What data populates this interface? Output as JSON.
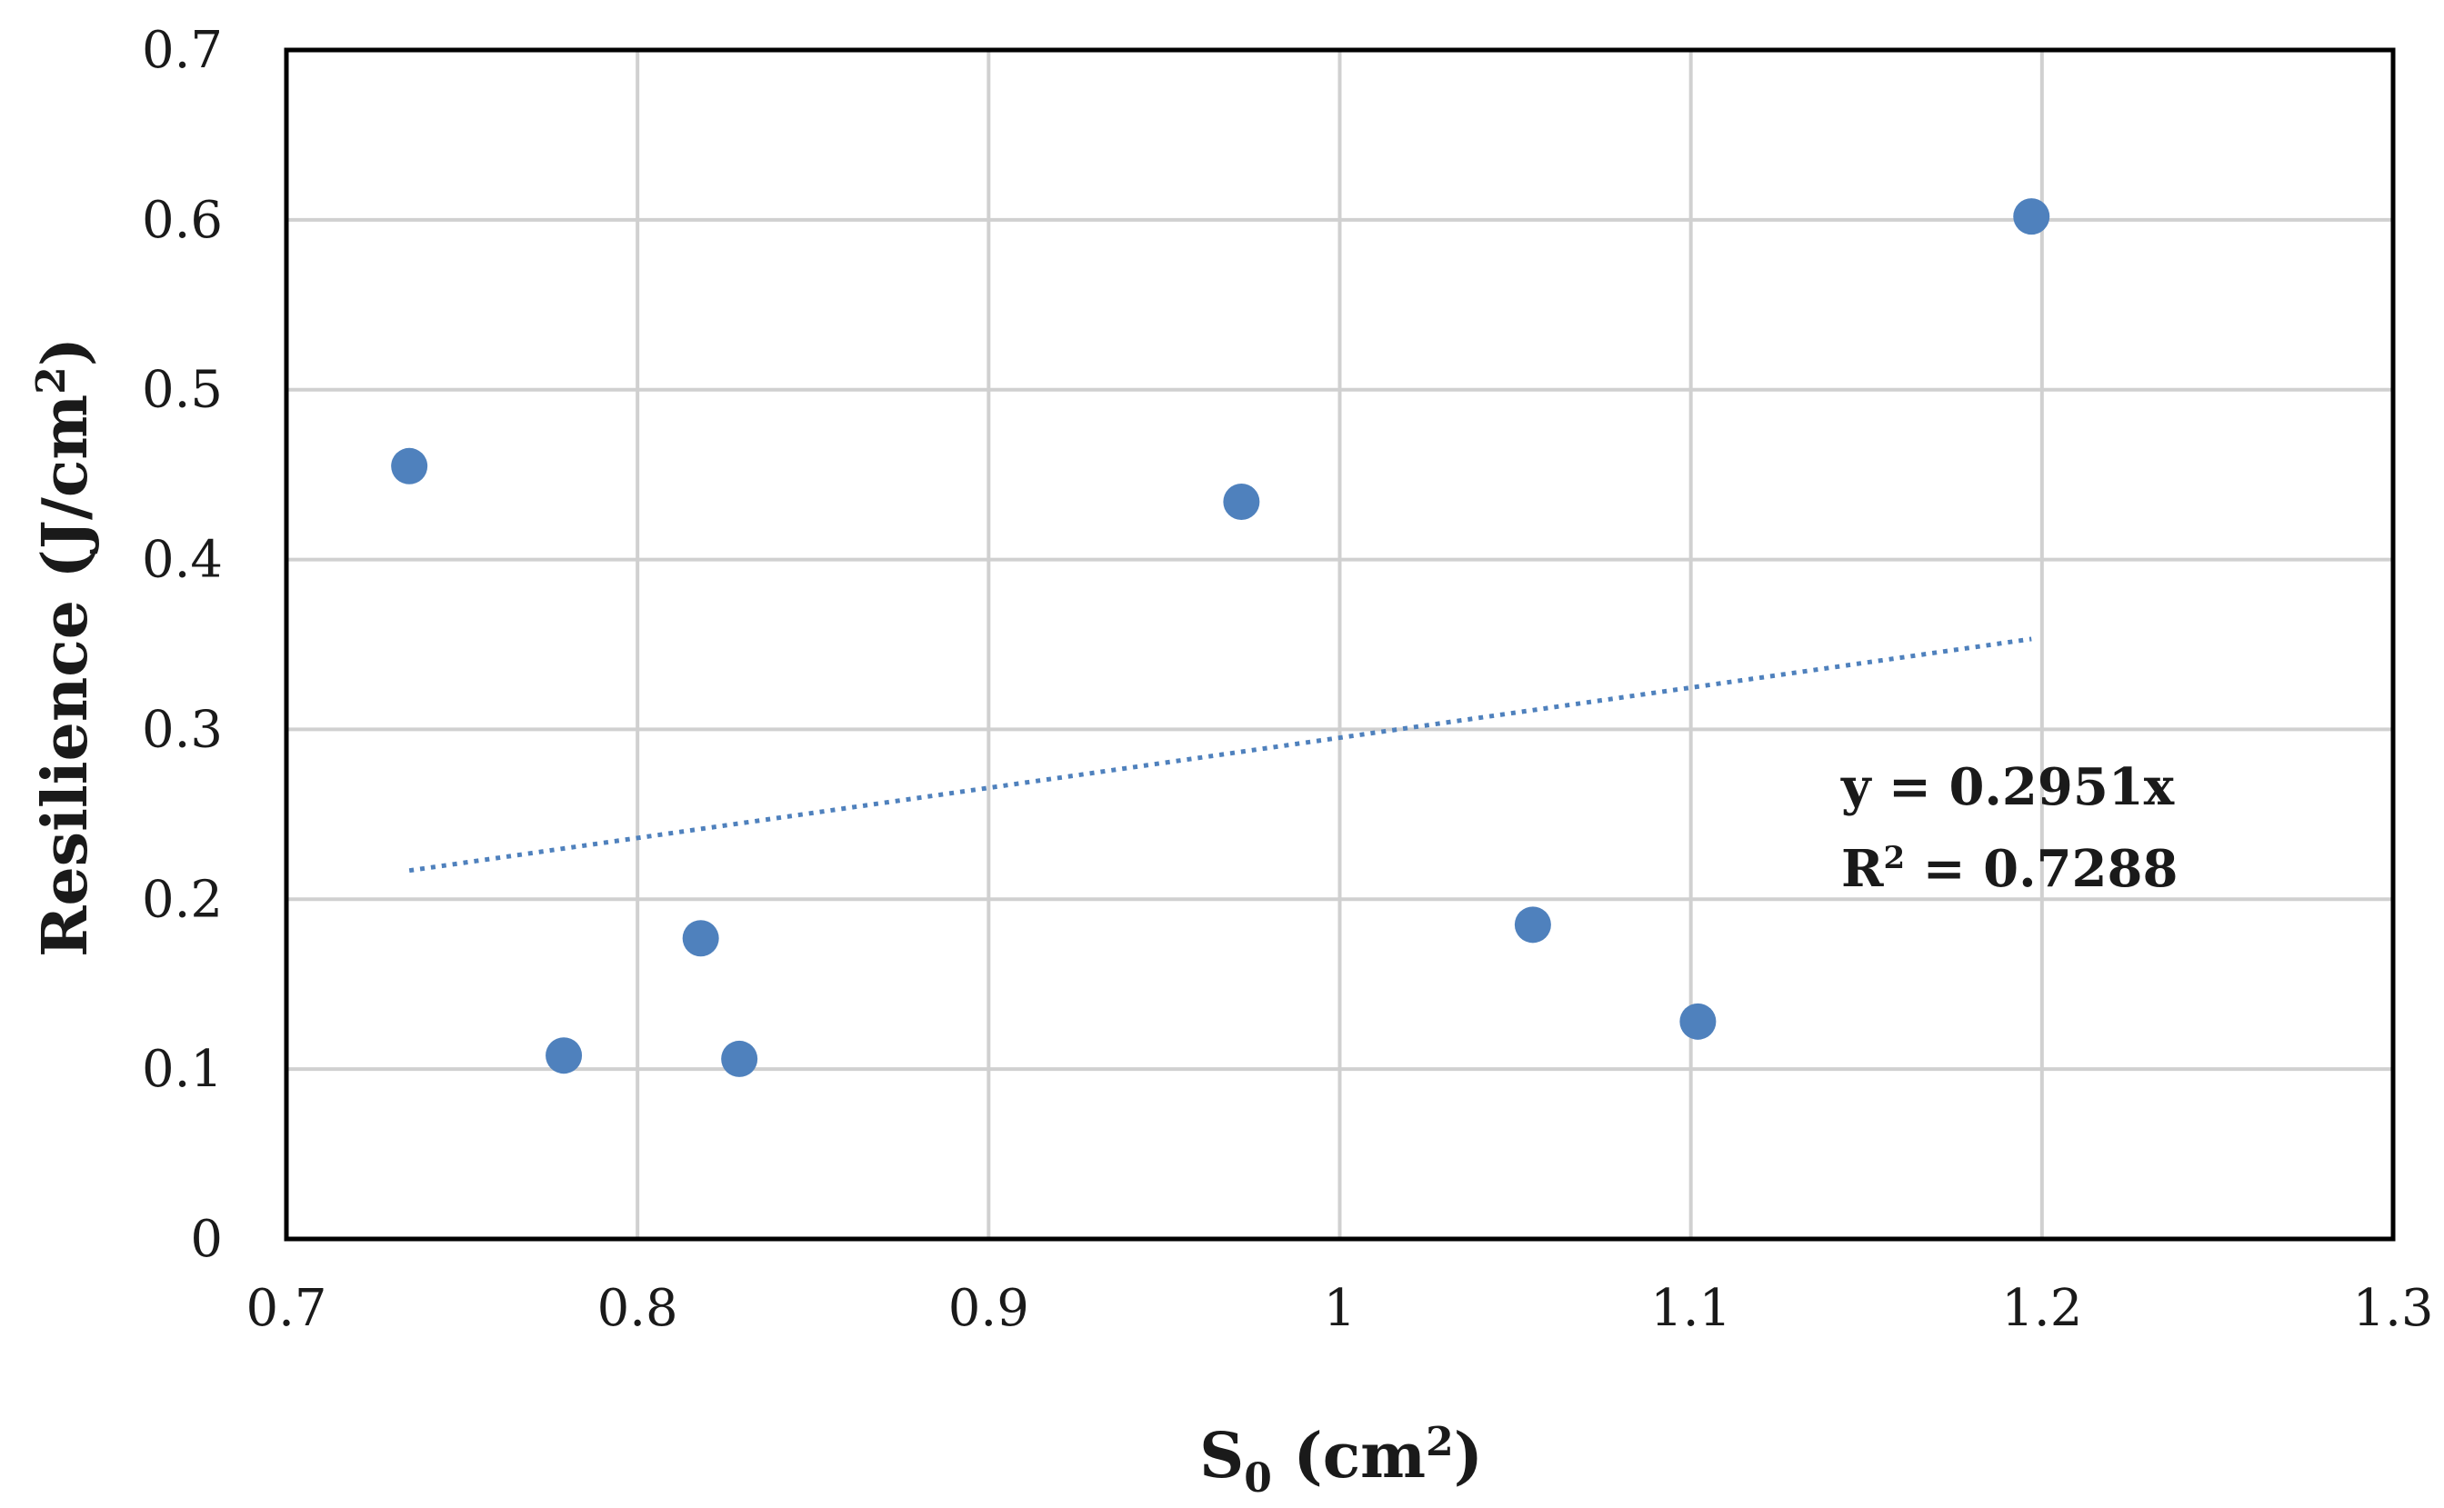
{
  "chart_data": {
    "type": "scatter",
    "title": "",
    "xlabel": {
      "main": "S",
      "sub": "0",
      "unit_open": " (cm",
      "sup": "2",
      "unit_close": ")"
    },
    "ylabel": {
      "main": "Resilience  (J/cm",
      "sup": "2",
      "close": ")"
    },
    "xlim": [
      0.7,
      1.3
    ],
    "ylim": [
      0,
      0.7
    ],
    "xticks": [
      0.7,
      0.8,
      0.9,
      1.0,
      1.1,
      1.2,
      1.3
    ],
    "xtick_labels": [
      "0.7",
      "0.8",
      "0.9",
      "1",
      "1.1",
      "1.2",
      "1.3"
    ],
    "yticks": [
      0,
      0.1,
      0.2,
      0.3,
      0.4,
      0.5,
      0.6,
      0.7
    ],
    "ytick_labels": [
      "0",
      "0.1",
      "0.2",
      "0.3",
      "0.4",
      "0.5",
      "0.6",
      "0.7"
    ],
    "grid": true,
    "series": [
      {
        "name": "Resilience",
        "color": "#4f81bd",
        "points": [
          {
            "x": 0.735,
            "y": 0.455
          },
          {
            "x": 0.779,
            "y": 0.108
          },
          {
            "x": 0.818,
            "y": 0.177
          },
          {
            "x": 0.829,
            "y": 0.106
          },
          {
            "x": 0.972,
            "y": 0.434
          },
          {
            "x": 1.055,
            "y": 0.185
          },
          {
            "x": 1.102,
            "y": 0.128
          },
          {
            "x": 1.197,
            "y": 0.602
          }
        ]
      }
    ],
    "trendline": {
      "type": "linear",
      "slope": 0.2951,
      "intercept": 0,
      "x_range": [
        0.735,
        1.197
      ],
      "style": "dotted",
      "color": "#4f81bd",
      "equation_label": "y = 0.2951x",
      "r2_prefix": "R",
      "r2_sup": "2",
      "r2_value": " = 0.7288"
    }
  }
}
